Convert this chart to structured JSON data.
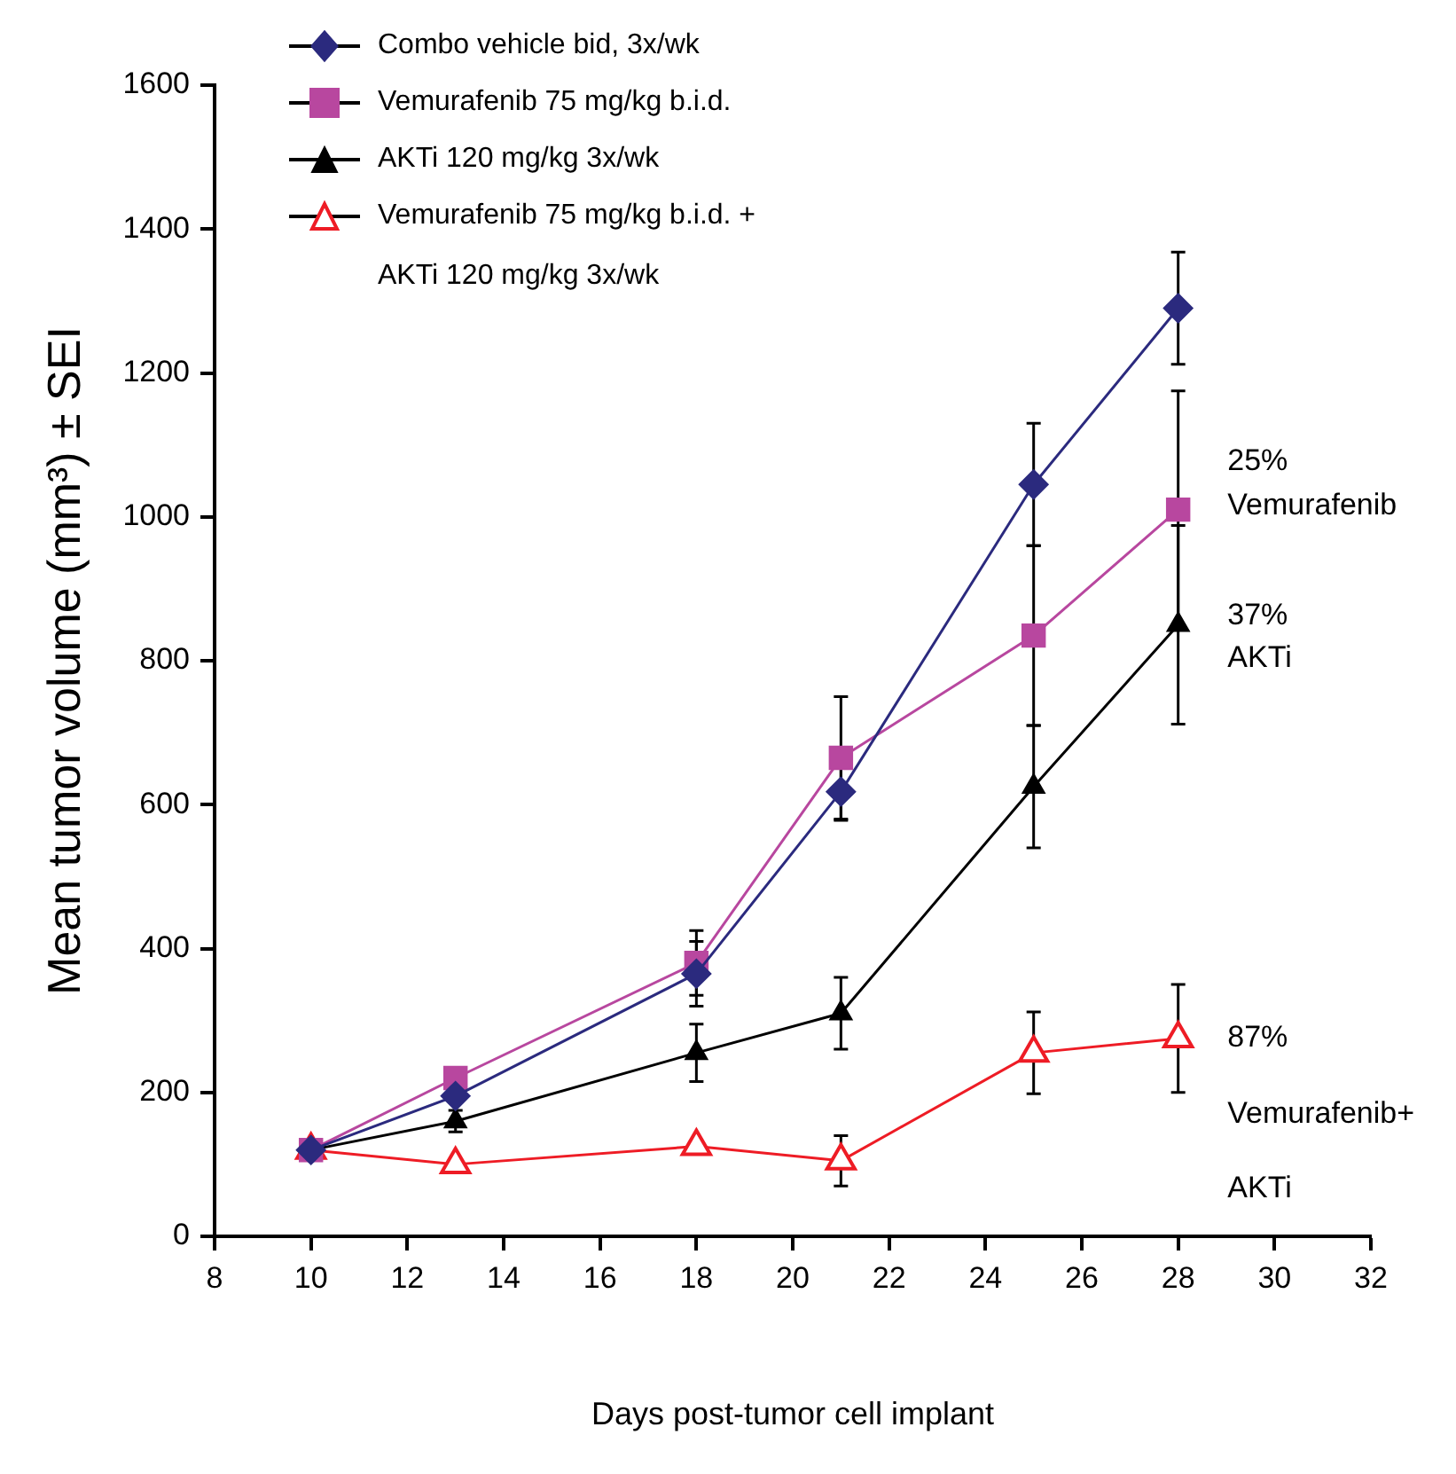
{
  "chart_data": {
    "type": "line",
    "xlabel": "Days post-tumor cell implant",
    "ylabel": "Mean tumor volume (mm³) ± SEI",
    "xlim": [
      8,
      32
    ],
    "xticks": [
      8,
      10,
      12,
      14,
      16,
      18,
      20,
      22,
      24,
      26,
      28,
      30,
      32
    ],
    "ylim": [
      0,
      1600
    ],
    "yticks": [
      0,
      200,
      400,
      600,
      800,
      1000,
      1200,
      1400,
      1600
    ],
    "x": [
      10,
      13,
      18,
      21,
      25,
      28
    ],
    "grid": false,
    "legend": "top left",
    "line_style": "solid",
    "series": [
      {
        "name": "Combo vehicle bid, 3x/wk",
        "color": "#2b2a7e",
        "marker": "diamond",
        "values": [
          120,
          195,
          365,
          618,
          1045,
          1290
        ],
        "errors": [
          null,
          null,
          45,
          40,
          85,
          78
        ]
      },
      {
        "name": "Vemurafenib 75 mg/kg b.i.d.",
        "color": "#b8479f",
        "marker": "square",
        "values": [
          120,
          220,
          380,
          665,
          835,
          1010
        ],
        "errors": [
          null,
          null,
          45,
          85,
          125,
          165
        ]
      },
      {
        "name": "AKTi 120 mg/kg 3x/wk",
        "color": "#000000",
        "marker": "triangle",
        "values": [
          120,
          160,
          255,
          310,
          625,
          850
        ],
        "errors": [
          null,
          15,
          40,
          50,
          85,
          138
        ]
      },
      {
        "name": "Vemurafenib 75 mg/kg b.i.d. +\nAKTi 120 mg/kg 3x/wk",
        "color": "#ee1c25",
        "marker": "triangle-open",
        "values": [
          120,
          100,
          125,
          105,
          255,
          275
        ],
        "errors": [
          null,
          null,
          null,
          35,
          57,
          75
        ]
      }
    ],
    "annotations": [
      "25%",
      "Vemurafenib",
      "37%",
      "AKTi",
      "87%",
      "Vemurafenib+",
      "AKTi"
    ]
  }
}
